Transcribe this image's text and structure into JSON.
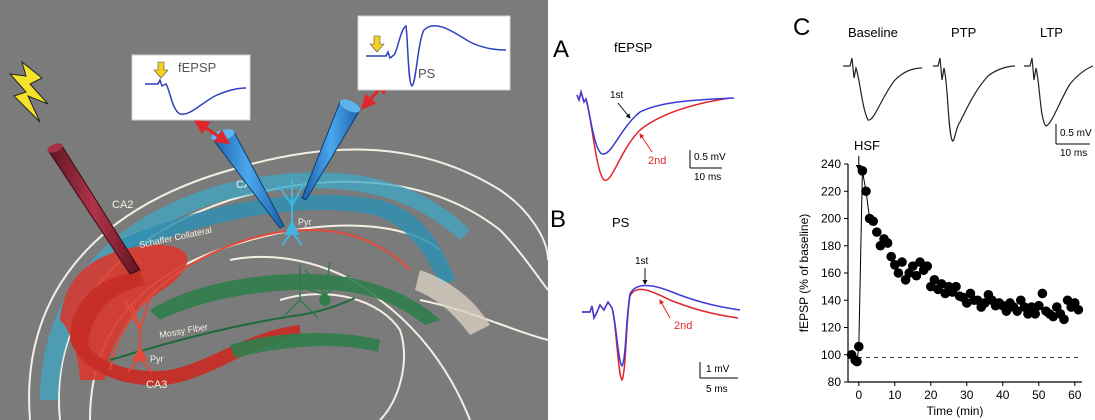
{
  "schematic": {
    "inset_fepsp": "fEPSP",
    "inset_ps": "PS",
    "label_ca1": "CA1",
    "label_ca2": "CA2",
    "label_ca3": "CA3",
    "label_schaffer": "Schaffer Collateral",
    "label_mossy": "Mossy Fiber",
    "label_pyr_ca1": "Pyr",
    "label_pyr_ca3": "Pyr"
  },
  "panel_a": {
    "letter": "A",
    "title": "fEPSP",
    "label_1st": "1st",
    "label_2nd": "2nd",
    "scale_v": "0.5 mV",
    "scale_t": "10 ms"
  },
  "panel_b": {
    "letter": "B",
    "title": "PS",
    "label_1st": "1st",
    "label_2nd": "2nd",
    "scale_v": "1 mV",
    "scale_t": "5 ms"
  },
  "panel_c": {
    "letter": "C",
    "trace_labels": [
      "Baseline",
      "PTP",
      "LTP"
    ],
    "scale_v": "0.5 mV",
    "scale_t": "10 ms",
    "hsf_label": "HSF"
  },
  "colors": {
    "background_gray": "#7b7b7b",
    "ca1_teal": "#3fa7c4",
    "ca3_red": "#d8392f",
    "dentate_green": "#2f7d4a",
    "electrode_blue": "#2f7fd0",
    "stim_electrode": "#8a1f2e",
    "trace_first": "#3b3bd8",
    "trace_second": "#e0262a"
  },
  "chart_data": {
    "type": "scatter",
    "xlabel": "Time (min)",
    "ylabel": "fEPSP (% of baseline)",
    "xlim": [
      -3,
      62
    ],
    "ylim": [
      80,
      240
    ],
    "xticks": [
      0,
      10,
      20,
      30,
      40,
      50,
      60
    ],
    "yticks": [
      80,
      100,
      120,
      140,
      160,
      180,
      200,
      220,
      240
    ],
    "baseline_level": 98,
    "annotation": {
      "text": "HSF",
      "x": 0
    },
    "x": [
      -2,
      -1,
      -0.5,
      0,
      1,
      2,
      3,
      4,
      5,
      6,
      7,
      8,
      9,
      10,
      11,
      12,
      13,
      14,
      15,
      16,
      17,
      18,
      19,
      20,
      21,
      22,
      23,
      24,
      25,
      26,
      27,
      28,
      29,
      30,
      31,
      32,
      33,
      34,
      35,
      36,
      37,
      38,
      39,
      40,
      41,
      42,
      43,
      44,
      45,
      46,
      47,
      48,
      49,
      50,
      51,
      52,
      53,
      54,
      55,
      56,
      57,
      58,
      59,
      60,
      61
    ],
    "y": [
      100,
      96,
      95,
      106,
      235,
      220,
      200,
      198,
      190,
      180,
      185,
      182,
      172,
      166,
      160,
      168,
      155,
      160,
      165,
      158,
      168,
      162,
      165,
      150,
      155,
      148,
      152,
      145,
      150,
      146,
      150,
      143,
      142,
      138,
      145,
      140,
      140,
      135,
      138,
      144,
      140,
      136,
      138,
      136,
      132,
      138,
      135,
      132,
      140,
      135,
      130,
      135,
      130,
      136,
      145,
      132,
      130,
      128,
      135,
      130,
      126,
      140,
      135,
      138,
      133
    ]
  }
}
